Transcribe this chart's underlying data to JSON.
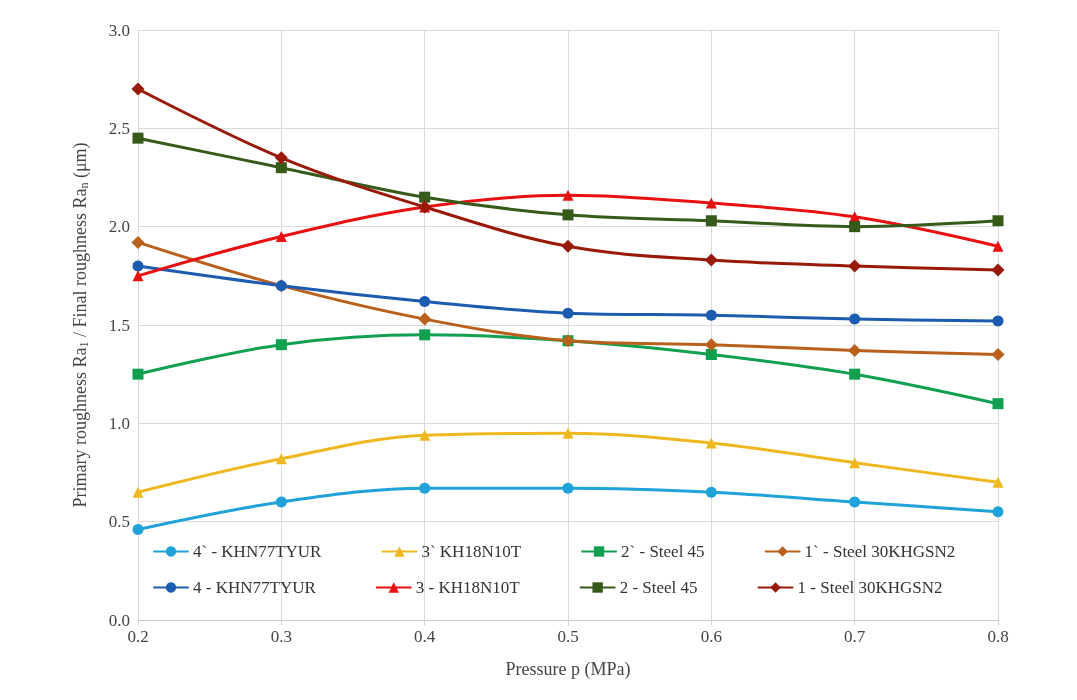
{
  "chart_data": {
    "type": "line",
    "xlabel": "Pressure p (MPa)",
    "ylabel": "Primary roughness Ra$_{1}$ / Final roughness Ra$_{n}$ (μm)",
    "x": [
      0.2,
      0.3,
      0.4,
      0.5,
      0.6,
      0.7,
      0.8
    ],
    "xlim": [
      0.2,
      0.8
    ],
    "xticks": [
      0.2,
      0.3,
      0.4,
      0.5,
      0.6,
      0.7,
      0.8
    ],
    "ylim": [
      0,
      3
    ],
    "yticks": [
      {
        "value": 0,
        "label": "0.0"
      },
      0.5,
      {
        "value": 1,
        "label": "1.0"
      },
      1.5,
      {
        "value": 2,
        "label": "2.0"
      },
      2.5,
      {
        "value": 3,
        "label": "3.0"
      }
    ],
    "grid": true,
    "legend": "bottom",
    "line_style": "solid",
    "series": [
      {
        "name": "4` - KHN77TYUR",
        "color": "#1fa3d8",
        "marker": "circle",
        "values": [
          0.46,
          0.6,
          0.67,
          0.67,
          0.65,
          0.6,
          0.55
        ]
      },
      {
        "name": "3` KH18N10T",
        "color": "#f0b820",
        "marker": "triangle",
        "values": [
          0.65,
          0.82,
          0.94,
          0.95,
          0.9,
          0.8,
          0.7
        ]
      },
      {
        "name": "2` - Steel 45",
        "color": "#10a050",
        "marker": "square",
        "values": [
          1.25,
          1.4,
          1.45,
          1.42,
          1.35,
          1.25,
          1.1
        ]
      },
      {
        "name": "1` - Steel 30KHGSN2",
        "color": "#b8601c",
        "marker": "diamond",
        "values": [
          1.92,
          1.7,
          1.53,
          1.42,
          1.4,
          1.37,
          1.35
        ]
      },
      {
        "name": "4 - KHN77TYUR",
        "color": "#1c5cb0",
        "marker": "circle",
        "values": [
          1.8,
          1.7,
          1.62,
          1.56,
          1.55,
          1.53,
          1.52
        ]
      },
      {
        "name": "3 - KH18N10T",
        "color": "#e81010",
        "marker": "triangle",
        "values": [
          1.75,
          1.95,
          2.1,
          2.16,
          2.12,
          2.05,
          1.9
        ]
      },
      {
        "name": "2 - Steel 45",
        "color": "#355a1a",
        "marker": "square",
        "values": [
          2.45,
          2.3,
          2.15,
          2.06,
          2.03,
          2.0,
          2.03
        ]
      },
      {
        "name": "1 - Steel 30KHGSN2",
        "color": "#9a1a0a",
        "marker": "diamond",
        "values": [
          2.7,
          2.35,
          2.1,
          1.9,
          1.83,
          1.8,
          1.78
        ]
      }
    ]
  }
}
